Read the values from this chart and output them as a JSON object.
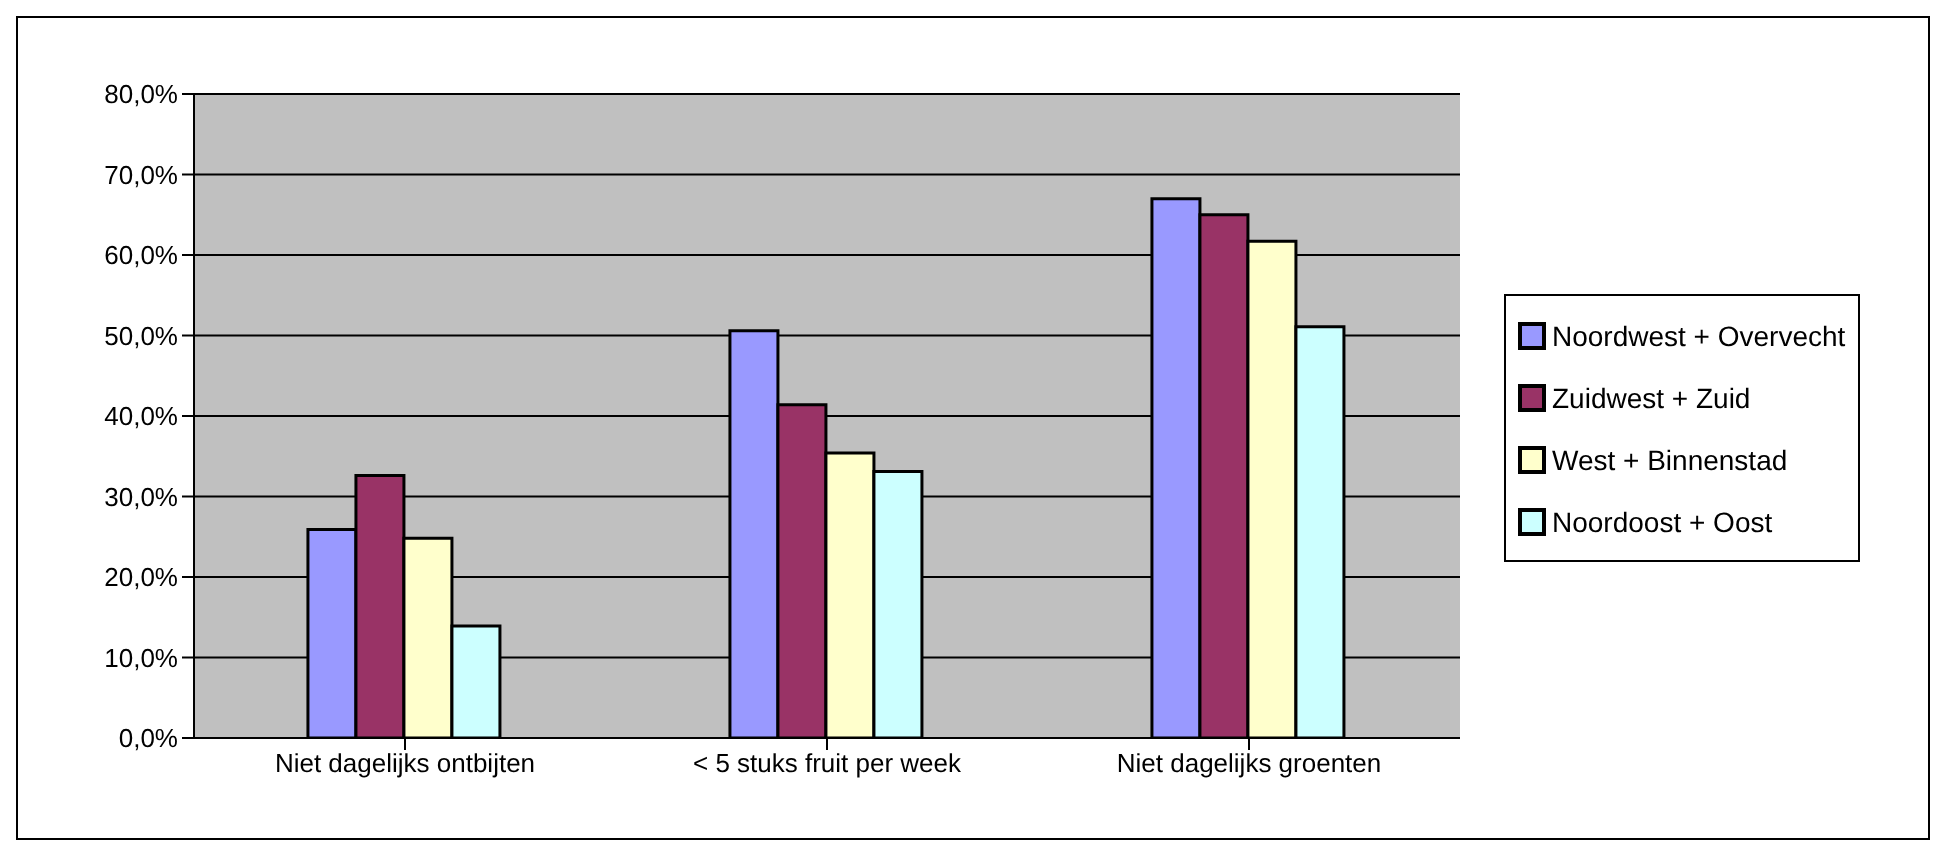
{
  "chart_data": {
    "type": "bar",
    "categories": [
      "Niet dagelijks ontbijten",
      "< 5 stuks fruit per week",
      "Niet dagelijks groenten"
    ],
    "series": [
      {
        "name": "Noordwest + Overvecht",
        "color": "#9999ff",
        "values": [
          25.9,
          50.6,
          67.0
        ]
      },
      {
        "name": "Zuidwest + Zuid",
        "color": "#993366",
        "values": [
          32.6,
          41.4,
          65.0
        ]
      },
      {
        "name": "West + Binnenstad",
        "color": "#ffffcc",
        "values": [
          24.8,
          35.4,
          61.7
        ]
      },
      {
        "name": "Noordoost + Oost",
        "color": "#ccffff",
        "values": [
          13.9,
          33.1,
          51.1
        ]
      }
    ],
    "ylim": [
      0,
      80
    ],
    "yticks": [
      {
        "value": 0,
        "label": "0,0%"
      },
      {
        "value": 10,
        "label": "10,0%"
      },
      {
        "value": 20,
        "label": "20,0%"
      },
      {
        "value": 30,
        "label": "30,0%"
      },
      {
        "value": 40,
        "label": "40,0%"
      },
      {
        "value": 50,
        "label": "50,0%"
      },
      {
        "value": 60,
        "label": "60,0%"
      },
      {
        "value": 70,
        "label": "70,0%"
      },
      {
        "value": 80,
        "label": "80,0%"
      }
    ],
    "grid": "y",
    "legend": "right"
  }
}
